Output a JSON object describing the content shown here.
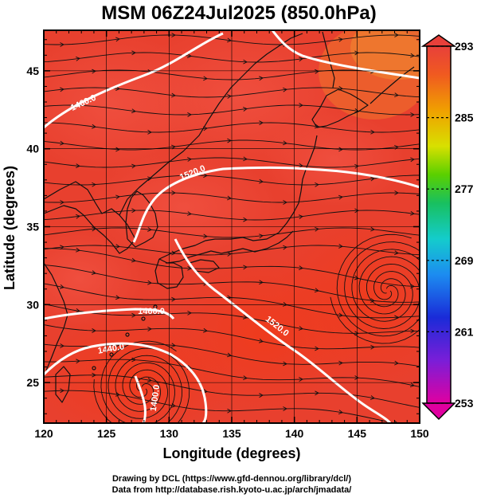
{
  "title": "MSM 06Z24Jul2025 (850.0hPa)",
  "x_axis": {
    "label": "Longitude (degrees)",
    "ticks": [
      120,
      125,
      130,
      135,
      140,
      145,
      150
    ],
    "range": [
      120,
      150
    ]
  },
  "y_axis": {
    "label": "Latitude  (degrees)",
    "ticks": [
      25,
      30,
      35,
      40,
      45
    ],
    "range": [
      22.4,
      47.6
    ]
  },
  "colorbar": {
    "ticks": [
      293,
      285,
      277,
      269,
      261,
      253
    ],
    "range": [
      253,
      293
    ],
    "colors": [
      "#e0007f",
      "#8a2be2",
      "#1e2bd8",
      "#1c8cf0",
      "#18d0d0",
      "#18c060",
      "#60d000",
      "#d8e000",
      "#f0a000",
      "#f05a20",
      "#e03a3a"
    ]
  },
  "contours": [
    {
      "label": "1460.0"
    },
    {
      "label": "1520.0"
    },
    {
      "label": "1460.0"
    },
    {
      "label": "1520.0"
    },
    {
      "label": "1440.0"
    },
    {
      "label": "1400.0"
    }
  ],
  "credits": {
    "line1": "Drawing by DCL (https://www.gfd-dennou.org/library/dcl/)",
    "line2": "Data from http://database.rish.kyoto-u.ac.jp/arch/jmadata/"
  }
}
